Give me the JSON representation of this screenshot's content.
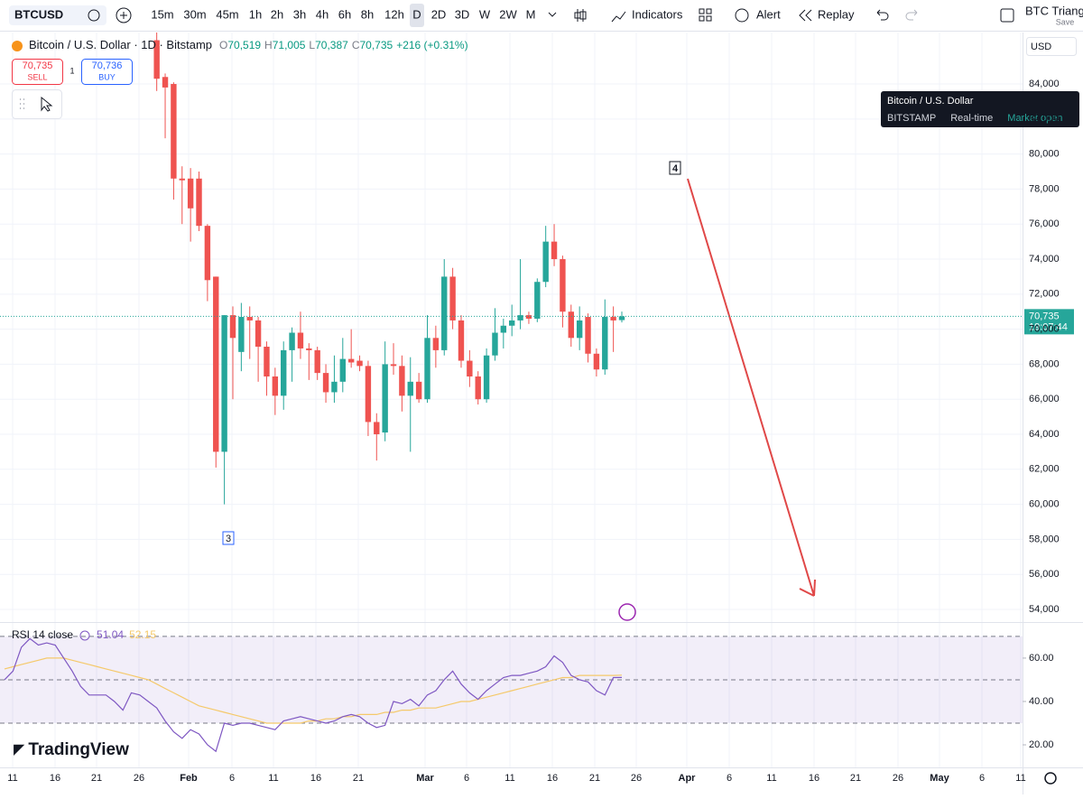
{
  "toolbar": {
    "symbol": "BTCUSD",
    "intervals": [
      "15m",
      "30m",
      "45m",
      "1h",
      "2h",
      "3h",
      "4h",
      "6h",
      "8h",
      "12h",
      "D",
      "2D",
      "3D",
      "W",
      "2W",
      "M"
    ],
    "active_interval": 10,
    "indicators": "Indicators",
    "alert": "Alert",
    "replay": "Replay",
    "layout_name": "BTC Triangl",
    "save": "Save"
  },
  "legend": {
    "title": "Bitcoin / U.S. Dollar · 1D · Bitstamp",
    "items": [
      {
        "label": "O",
        "value": "70,519"
      },
      {
        "label": "H",
        "value": "71,005"
      },
      {
        "label": "L",
        "value": "70,387"
      },
      {
        "label": "C",
        "value": "70,735"
      }
    ],
    "change": "+216 (+0.31%)"
  },
  "trade": {
    "sell_price": "70,735",
    "sell": "SELL",
    "spread": "1",
    "buy_price": "70,736",
    "buy": "BUY"
  },
  "currency": "USD",
  "tooltip": {
    "title": "Bitcoin / U.S. Dollar",
    "exchange": "BITSTAMP",
    "feed": "Real-time",
    "status": "Market open"
  },
  "price_tag": {
    "value": 70735,
    "label": "70,735",
    "countdown": "19:07:44"
  },
  "markers": [
    "3",
    "4"
  ],
  "brand": "TradingView",
  "chart_data": {
    "type": "candlestick",
    "up_color": "#26a69a",
    "down_color": "#ef5350",
    "ylim": [
      53330,
      86940
    ],
    "yticks": [
      {
        "value": 54000,
        "label": "54,000"
      },
      {
        "value": 56000,
        "label": "56,000"
      },
      {
        "value": 58000,
        "label": "58,000"
      },
      {
        "value": 60000,
        "label": "60,000"
      },
      {
        "value": 62000,
        "label": "62,000"
      },
      {
        "value": 64000,
        "label": "64,000"
      },
      {
        "value": 66000,
        "label": "66,000"
      },
      {
        "value": 68000,
        "label": "68,000"
      },
      {
        "value": 70000,
        "label": "70,000"
      },
      {
        "value": 72000,
        "label": "72,000"
      },
      {
        "value": 74000,
        "label": "74,000"
      },
      {
        "value": 76000,
        "label": "76,000"
      },
      {
        "value": 78000,
        "label": "78,000"
      },
      {
        "value": 80000,
        "label": "80,000"
      },
      {
        "value": 82000,
        "label": "82,000"
      },
      {
        "value": 84000,
        "label": "84,000"
      }
    ],
    "x_labels": [
      "11",
      "16",
      "21",
      "26",
      "Feb",
      "6",
      "11",
      "16",
      "21",
      "Mar",
      "6",
      "11",
      "16",
      "21",
      "26",
      "Apr",
      "6",
      "11",
      "16",
      "21",
      "26",
      "May",
      "6",
      "11"
    ],
    "grid": true,
    "open": [
      86500,
      84400,
      84000,
      78600,
      78600,
      78600,
      75900,
      73000,
      63000,
      70800,
      68700,
      70700,
      70500,
      69000,
      67300,
      66200,
      68800,
      69800,
      68900,
      68800,
      67500,
      66400,
      67000,
      68300,
      68200,
      67900,
      64700,
      64100,
      68000,
      67900,
      66200,
      67000,
      66000,
      69500,
      68800,
      73000,
      70500,
      68200,
      67300,
      66000,
      68500,
      69800,
      70200,
      70500,
      70800,
      70600,
      72700,
      75000,
      74000,
      71000,
      69500,
      70700,
      68600,
      67700,
      70700,
      70519
    ],
    "high": [
      87000,
      84600,
      84100,
      79300,
      79200,
      79000,
      76000,
      73000,
      70800,
      71300,
      71500,
      71300,
      70700,
      69300,
      67800,
      69300,
      70100,
      71000,
      69200,
      69000,
      68000,
      68500,
      69500,
      70000,
      68500,
      68200,
      65200,
      69300,
      69200,
      68500,
      68400,
      67500,
      70800,
      70200,
      74000,
      73500,
      70800,
      68800,
      67600,
      68900,
      71200,
      70600,
      71400,
      74000,
      71000,
      72900,
      75900,
      76000,
      74200,
      71400,
      71300,
      70900,
      68900,
      71700,
      71300,
      71005
    ],
    "low": [
      83600,
      80900,
      77400,
      76000,
      75000,
      75600,
      71600,
      62100,
      60000,
      66000,
      67600,
      68300,
      67000,
      66200,
      65100,
      65400,
      67000,
      68300,
      67100,
      67100,
      65800,
      65800,
      66400,
      67800,
      67600,
      63900,
      62500,
      63600,
      67400,
      65300,
      63000,
      65800,
      65800,
      67800,
      68500,
      70000,
      67800,
      66700,
      65700,
      65800,
      68200,
      68900,
      69600,
      70000,
      70300,
      70400,
      72400,
      73600,
      70100,
      69000,
      68800,
      68100,
      67300,
      67400,
      68700,
      70387
    ],
    "close": [
      84300,
      83800,
      78600,
      78500,
      76900,
      75900,
      72800,
      63000,
      70800,
      69500,
      70700,
      70500,
      69000,
      67300,
      66200,
      68800,
      69800,
      68900,
      68800,
      67500,
      66400,
      67000,
      68300,
      68100,
      67900,
      64700,
      64000,
      68000,
      67900,
      66200,
      67000,
      66000,
      69500,
      68800,
      73000,
      70500,
      68200,
      67300,
      66000,
      68500,
      69800,
      70200,
      70500,
      70800,
      70600,
      72700,
      75000,
      74000,
      71000,
      69500,
      70500,
      68600,
      67700,
      70700,
      70500,
      70735
    ]
  },
  "rsi": {
    "label": "RSI 14 close",
    "ylim": [
      9.6,
      76.2
    ],
    "yticks": [
      {
        "value": 60,
        "label": "60.00"
      },
      {
        "value": 40,
        "label": "40.00"
      },
      {
        "value": 20,
        "label": "20.00"
      }
    ],
    "bands": [
      70,
      50,
      30
    ],
    "series": [
      {
        "name": "RSI",
        "color": "#7e57c2",
        "values": [
          50,
          54,
          65,
          69,
          66,
          67,
          66,
          60,
          54,
          47,
          43,
          43,
          43,
          40,
          36,
          44,
          43,
          40,
          37,
          31,
          26,
          23,
          27,
          25,
          20,
          17,
          30,
          29,
          30,
          30,
          29,
          28,
          27,
          31,
          32,
          33,
          32,
          31,
          30,
          31,
          33,
          34,
          33,
          30,
          28,
          29,
          40,
          39,
          41,
          38,
          43,
          45,
          50,
          54,
          48,
          44,
          41,
          45,
          48,
          51,
          52,
          52,
          53,
          54,
          56,
          61,
          58,
          52,
          50,
          49,
          45,
          43,
          51,
          51.04
        ]
      },
      {
        "name": "RSI-based MA",
        "color": "#f5c96a",
        "values": [
          55,
          56,
          57,
          58,
          59,
          60,
          60,
          60,
          59,
          58,
          57,
          56,
          55,
          54,
          53,
          52,
          51,
          50,
          48,
          46,
          44,
          42,
          40,
          38,
          37,
          36,
          35,
          34,
          33,
          32,
          31,
          30,
          30,
          30,
          30,
          30,
          31,
          31,
          32,
          32,
          33,
          33,
          34,
          34,
          34,
          35,
          35,
          36,
          36,
          37,
          37,
          37,
          38,
          39,
          40,
          40,
          41,
          42,
          43,
          44,
          45,
          46,
          47,
          48,
          49,
          50,
          51,
          51,
          52,
          52,
          52,
          52,
          52,
          52.15
        ]
      }
    ]
  }
}
